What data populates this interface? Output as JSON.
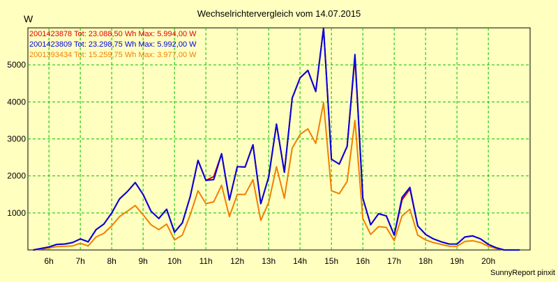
{
  "chart_data": {
    "type": "line",
    "title": "Wechselrichtervergleich vom 14.07.2015",
    "ylabel": "W",
    "footer": "SunnyReport pinxit",
    "ylim": [
      0,
      6000
    ],
    "yticks": [
      1000,
      2000,
      3000,
      4000,
      5000
    ],
    "xlim": [
      5.33,
      21.33
    ],
    "xticks": [
      {
        "value": 6,
        "label": "6h"
      },
      {
        "value": 7,
        "label": "7h"
      },
      {
        "value": 8,
        "label": "8h"
      },
      {
        "value": 9,
        "label": "9h"
      },
      {
        "value": 10,
        "label": "10h"
      },
      {
        "value": 11,
        "label": "11h"
      },
      {
        "value": 12,
        "label": "12h"
      },
      {
        "value": 13,
        "label": "13h"
      },
      {
        "value": 14,
        "label": "14h"
      },
      {
        "value": 15,
        "label": "15h"
      },
      {
        "value": 16,
        "label": "16h"
      },
      {
        "value": 17,
        "label": "17h"
      },
      {
        "value": 18,
        "label": "18h"
      },
      {
        "value": 19,
        "label": "19h"
      },
      {
        "value": 20,
        "label": "20h"
      }
    ],
    "grid": true,
    "legend_position": "top-left",
    "x": [
      5.5,
      5.75,
      6.0,
      6.25,
      6.5,
      6.75,
      7.0,
      7.25,
      7.5,
      7.75,
      8.0,
      8.25,
      8.5,
      8.75,
      9.0,
      9.25,
      9.5,
      9.75,
      10.0,
      10.25,
      10.5,
      10.75,
      11.0,
      11.25,
      11.5,
      11.75,
      12.0,
      12.25,
      12.5,
      12.75,
      13.0,
      13.25,
      13.5,
      13.75,
      14.0,
      14.25,
      14.5,
      14.75,
      15.0,
      15.25,
      15.5,
      15.75,
      16.0,
      16.25,
      16.5,
      16.75,
      17.0,
      17.25,
      17.5,
      17.75,
      18.0,
      18.25,
      18.5,
      18.75,
      19.0,
      19.25,
      19.5,
      19.75,
      20.0,
      20.25,
      20.5,
      20.75,
      21.0
    ],
    "series": [
      {
        "label": "2001423878 Tot: 23.088,50 Wh Max: 5.994,00 W",
        "color": "#e00000",
        "values": [
          0,
          40,
          80,
          150,
          160,
          200,
          300,
          220,
          550,
          700,
          1000,
          1380,
          1580,
          1820,
          1500,
          1050,
          850,
          1100,
          480,
          730,
          1440,
          2420,
          1880,
          1980,
          2600,
          1350,
          2250,
          2240,
          2840,
          1250,
          1970,
          3400,
          2100,
          4100,
          4650,
          4850,
          4280,
          5994,
          2450,
          2320,
          2800,
          5200,
          1400,
          680,
          980,
          920,
          400,
          1350,
          1650,
          650,
          420,
          300,
          220,
          160,
          160,
          350,
          380,
          300,
          150,
          60,
          0,
          0,
          0
        ]
      },
      {
        "label": "2001423809 Tot: 23.298,75 Wh Max: 5.992,00 W",
        "color": "#0000e0",
        "values": [
          0,
          40,
          80,
          150,
          160,
          200,
          300,
          220,
          550,
          700,
          1000,
          1380,
          1580,
          1820,
          1500,
          1050,
          850,
          1100,
          480,
          730,
          1440,
          2420,
          1880,
          1900,
          2600,
          1350,
          2250,
          2240,
          2840,
          1250,
          1970,
          3400,
          2100,
          4100,
          4650,
          4850,
          4280,
          5992,
          2450,
          2320,
          2800,
          5280,
          1400,
          680,
          980,
          920,
          400,
          1420,
          1690,
          650,
          420,
          300,
          220,
          160,
          160,
          350,
          380,
          300,
          150,
          60,
          0,
          0,
          0
        ]
      },
      {
        "label": "2001393434 Tot: 15.259,75 Wh Max: 3.977,00 W",
        "color": "#f08000",
        "values": [
          0,
          20,
          50,
          90,
          100,
          110,
          180,
          110,
          350,
          450,
          650,
          900,
          1050,
          1200,
          950,
          680,
          550,
          700,
          270,
          400,
          950,
          1600,
          1250,
          1300,
          1750,
          900,
          1500,
          1500,
          1900,
          800,
          1280,
          2250,
          1400,
          2750,
          3120,
          3270,
          2880,
          3977,
          1600,
          1520,
          1850,
          3500,
          850,
          420,
          630,
          610,
          250,
          920,
          1100,
          400,
          270,
          200,
          150,
          100,
          100,
          230,
          250,
          200,
          100,
          40,
          0,
          0,
          0
        ]
      }
    ]
  }
}
